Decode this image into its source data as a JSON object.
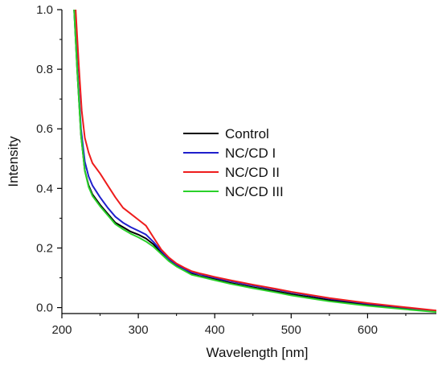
{
  "chart_data": {
    "type": "line",
    "title": "",
    "xlabel": "Wavelength [nm]",
    "ylabel": "Intensity",
    "xlim": [
      200,
      690
    ],
    "ylim": [
      -0.02,
      1.0
    ],
    "x_ticks": [
      200,
      300,
      400,
      500,
      600
    ],
    "y_ticks": [
      0.0,
      0.2,
      0.4,
      0.6,
      0.8,
      1.0
    ],
    "x_tick_labels": [
      "200",
      "300",
      "400",
      "500",
      "600"
    ],
    "y_tick_labels": [
      "0.0",
      "0.2",
      "0.4",
      "0.6",
      "0.8",
      "1.0"
    ],
    "grid": false,
    "legend_position": "center",
    "series": [
      {
        "name": "Control",
        "color": "#000000",
        "points": [
          [
            216,
            1.0
          ],
          [
            220,
            0.8
          ],
          [
            225,
            0.58
          ],
          [
            230,
            0.46
          ],
          [
            235,
            0.41
          ],
          [
            240,
            0.38
          ],
          [
            250,
            0.345
          ],
          [
            260,
            0.315
          ],
          [
            270,
            0.285
          ],
          [
            280,
            0.27
          ],
          [
            290,
            0.255
          ],
          [
            300,
            0.245
          ],
          [
            310,
            0.232
          ],
          [
            320,
            0.212
          ],
          [
            330,
            0.185
          ],
          [
            340,
            0.16
          ],
          [
            350,
            0.142
          ],
          [
            360,
            0.128
          ],
          [
            370,
            0.113
          ],
          [
            380,
            0.106
          ],
          [
            400,
            0.095
          ],
          [
            420,
            0.083
          ],
          [
            450,
            0.068
          ],
          [
            480,
            0.055
          ],
          [
            500,
            0.045
          ],
          [
            550,
            0.025
          ],
          [
            600,
            0.01
          ],
          [
            650,
            -0.003
          ],
          [
            690,
            -0.013
          ]
        ]
      },
      {
        "name": "NC/CD I",
        "color": "#1f1fcc",
        "points": [
          [
            217,
            1.0
          ],
          [
            220,
            0.82
          ],
          [
            225,
            0.6
          ],
          [
            230,
            0.49
          ],
          [
            235,
            0.44
          ],
          [
            240,
            0.41
          ],
          [
            250,
            0.37
          ],
          [
            260,
            0.335
          ],
          [
            270,
            0.305
          ],
          [
            280,
            0.285
          ],
          [
            290,
            0.27
          ],
          [
            300,
            0.258
          ],
          [
            310,
            0.245
          ],
          [
            320,
            0.22
          ],
          [
            330,
            0.19
          ],
          [
            340,
            0.163
          ],
          [
            350,
            0.145
          ],
          [
            360,
            0.13
          ],
          [
            370,
            0.118
          ],
          [
            380,
            0.112
          ],
          [
            400,
            0.1
          ],
          [
            420,
            0.089
          ],
          [
            450,
            0.074
          ],
          [
            480,
            0.061
          ],
          [
            500,
            0.051
          ],
          [
            550,
            0.03
          ],
          [
            600,
            0.013
          ],
          [
            650,
            0.0
          ],
          [
            690,
            -0.011
          ]
        ]
      },
      {
        "name": "NC/CD II",
        "color": "#ee1c1c",
        "points": [
          [
            218,
            1.0
          ],
          [
            222,
            0.82
          ],
          [
            226,
            0.66
          ],
          [
            230,
            0.57
          ],
          [
            235,
            0.52
          ],
          [
            240,
            0.485
          ],
          [
            250,
            0.45
          ],
          [
            260,
            0.41
          ],
          [
            270,
            0.37
          ],
          [
            280,
            0.335
          ],
          [
            290,
            0.315
          ],
          [
            300,
            0.295
          ],
          [
            310,
            0.275
          ],
          [
            315,
            0.255
          ],
          [
            320,
            0.235
          ],
          [
            330,
            0.195
          ],
          [
            340,
            0.168
          ],
          [
            350,
            0.148
          ],
          [
            360,
            0.134
          ],
          [
            370,
            0.122
          ],
          [
            380,
            0.115
          ],
          [
            400,
            0.103
          ],
          [
            420,
            0.092
          ],
          [
            450,
            0.077
          ],
          [
            480,
            0.063
          ],
          [
            500,
            0.053
          ],
          [
            550,
            0.032
          ],
          [
            600,
            0.015
          ],
          [
            650,
            0.001
          ],
          [
            690,
            -0.01
          ]
        ]
      },
      {
        "name": "NC/CD III",
        "color": "#2ad12a",
        "points": [
          [
            216,
            1.0
          ],
          [
            220,
            0.8
          ],
          [
            225,
            0.58
          ],
          [
            230,
            0.46
          ],
          [
            235,
            0.405
          ],
          [
            240,
            0.375
          ],
          [
            250,
            0.34
          ],
          [
            260,
            0.31
          ],
          [
            270,
            0.28
          ],
          [
            280,
            0.263
          ],
          [
            290,
            0.248
          ],
          [
            300,
            0.236
          ],
          [
            310,
            0.222
          ],
          [
            320,
            0.204
          ],
          [
            330,
            0.18
          ],
          [
            340,
            0.156
          ],
          [
            350,
            0.138
          ],
          [
            360,
            0.124
          ],
          [
            370,
            0.11
          ],
          [
            380,
            0.104
          ],
          [
            400,
            0.092
          ],
          [
            420,
            0.08
          ],
          [
            450,
            0.065
          ],
          [
            480,
            0.051
          ],
          [
            500,
            0.041
          ],
          [
            550,
            0.021
          ],
          [
            600,
            0.006
          ],
          [
            650,
            -0.006
          ],
          [
            690,
            -0.015
          ]
        ]
      }
    ]
  }
}
